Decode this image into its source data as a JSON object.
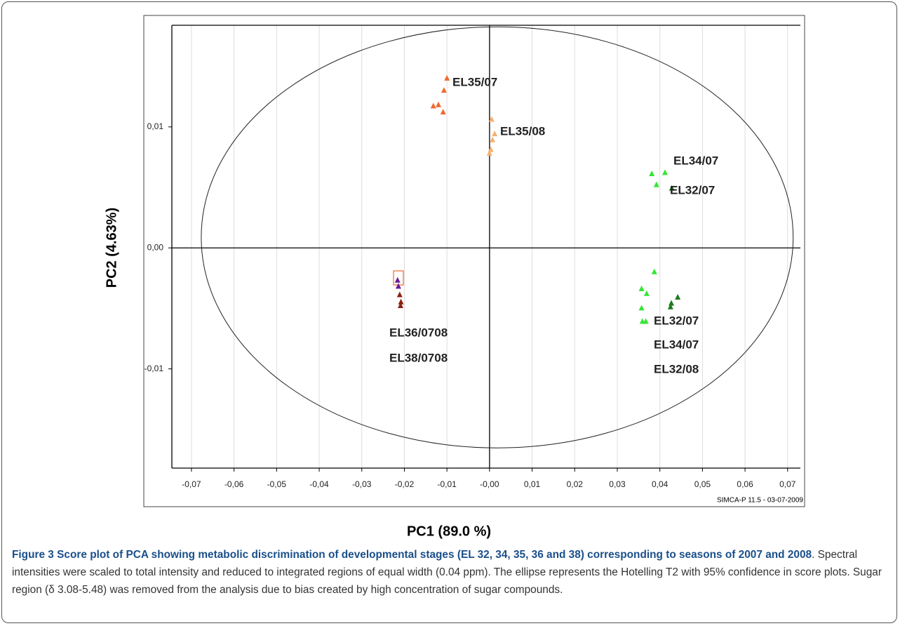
{
  "chart_data": {
    "type": "scatter",
    "xlabel": "PC1 (89.0 %)",
    "ylabel": "PC2 (4.63%)",
    "xlim": [
      -0.0746,
      0.073
    ],
    "ylim": [
      -0.0182,
      0.0184
    ],
    "xticks": [
      {
        "value": -0.07,
        "label": "-0,07"
      },
      {
        "value": -0.06,
        "label": "-0,06"
      },
      {
        "value": -0.05,
        "label": "-0,05"
      },
      {
        "value": -0.04,
        "label": "-0,04"
      },
      {
        "value": -0.03,
        "label": "-0,03"
      },
      {
        "value": -0.02,
        "label": "-0,02"
      },
      {
        "value": -0.01,
        "label": "-0,01"
      },
      {
        "value": 0,
        "label": "-0,00"
      },
      {
        "value": 0.01,
        "label": "0,01"
      },
      {
        "value": 0.02,
        "label": "0,02"
      },
      {
        "value": 0.03,
        "label": "0,03"
      },
      {
        "value": 0.04,
        "label": "0,04"
      },
      {
        "value": 0.05,
        "label": "0,05"
      },
      {
        "value": 0.06,
        "label": "0,06"
      },
      {
        "value": 0.07,
        "label": "0,07"
      }
    ],
    "yticks": [
      {
        "value": 0.01,
        "label": "0,01"
      },
      {
        "value": 0,
        "label": "0,00"
      },
      {
        "value": -0.01,
        "label": "-0,01"
      }
    ],
    "grid": true,
    "ellipse": {
      "cx": 0.0018,
      "cy": 0.00087,
      "rx": 0.0695,
      "ry": 0.0174
    },
    "series": [
      {
        "color": "#f06a30",
        "x": [
          -0.0107,
          -0.01,
          -0.0132,
          -0.012,
          -0.0109
        ],
        "values": [
          0.013,
          0.014,
          0.0117,
          0.0118,
          0.0112
        ]
      },
      {
        "color": "#f5b070",
        "x": [
          0.0005,
          0.0012,
          0.0007,
          0.0003,
          0.0
        ],
        "values": [
          0.0106,
          0.0094,
          0.0089,
          0.0081,
          0.0078
        ]
      },
      {
        "color": "#33e633",
        "x": [
          0.0381,
          0.0412,
          0.0392,
          0.0387,
          0.0357,
          0.0369,
          0.0357,
          0.0359,
          0.0367
        ],
        "values": [
          0.0061,
          0.0062,
          0.0052,
          -0.002,
          -0.0034,
          -0.0038,
          -0.005,
          -0.0061,
          -0.0061
        ]
      },
      {
        "color": "#1a7a1a",
        "x": [
          0.0428,
          0.0442,
          0.0427,
          0.0425
        ],
        "values": [
          0.0049,
          -0.0041,
          -0.0046,
          -0.0049
        ]
      },
      {
        "color": "#6a1a9a",
        "x": [
          -0.0216,
          -0.0214
        ],
        "values": [
          -0.0027,
          -0.0032
        ]
      },
      {
        "color": "#8a2010",
        "x": [
          -0.0211,
          -0.0208,
          -0.0209
        ],
        "values": [
          -0.0039,
          -0.0045,
          -0.0048
        ]
      }
    ],
    "annotations": [
      "EL35/07",
      "EL35/08",
      "EL34/07",
      "EL32/07",
      "EL36/0708",
      "EL38/0708",
      "EL32/07",
      "EL34/07",
      "EL32/08"
    ],
    "watermark": "SIMCA-P 11.5 - 03-07-2009"
  },
  "caption": {
    "bold": "Figure 3 Score plot of PCA showing metabolic discrimination of developmental stages (EL 32, 34, 35, 36 and 38) corresponding to seasons of 2007 and 2008",
    "text": ". Spectral intensities were scaled to total intensity and reduced to integrated regions of equal width (0.04 ppm). The ellipse represents the Hotelling T2 with 95% confidence in score plots. Sugar region (δ 3.08-5.48) was removed from the analysis due to bias created by high concentration of sugar compounds."
  }
}
